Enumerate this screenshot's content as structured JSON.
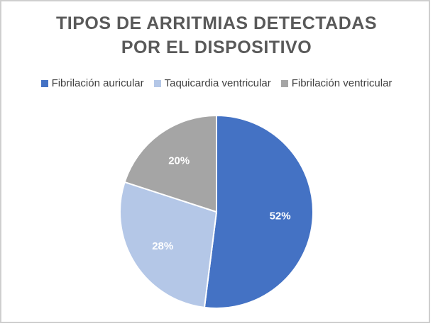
{
  "chart_data": {
    "type": "pie",
    "title": [
      "TIPOS DE ARRITMIAS DETECTADAS",
      "POR EL DISPOSITIVO"
    ],
    "legend_position": "top",
    "categories": [
      "Fibrilación auricular",
      "Taquicardia ventricular",
      "Fibrilación ventricular"
    ],
    "values": [
      52,
      28,
      20
    ],
    "labels": [
      "52%",
      "28%",
      "20%"
    ],
    "colors": [
      "#4472c4",
      "#b4c7e7",
      "#a5a5a5"
    ]
  }
}
